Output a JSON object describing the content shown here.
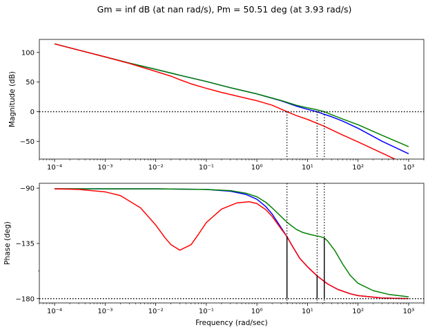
{
  "figure": {
    "title": "Gm = inf dB (at nan rad/s), Pm = 50.51 deg (at 3.93 rad/s)"
  },
  "chart_data": [
    {
      "type": "line",
      "id": "magnitude",
      "xlabel": "",
      "ylabel": "Magnitude (dB)",
      "xscale": "log",
      "xlim": [
        5e-05,
        2000
      ],
      "ylim": [
        -80,
        122
      ],
      "x_tick_values": [
        0.0001,
        0.001,
        0.01,
        0.1,
        1,
        10,
        100,
        1000
      ],
      "x_tick_labels": [
        "10⁻⁴",
        "10⁻³",
        "10⁻²",
        "10⁻¹",
        "10⁰",
        "10¹",
        "10²",
        "10³"
      ],
      "y_ticks": [
        100,
        50,
        0,
        -50
      ],
      "y_tick_labels": [
        "100",
        "50",
        "0",
        "−50"
      ],
      "reference_line": 0,
      "crossover_lines": [
        3.93,
        15.5,
        21.5
      ],
      "grid": false,
      "series": [
        {
          "color": "#0000ff",
          "x": [
            0.0001,
            0.0003,
            0.001,
            0.003,
            0.01,
            0.03,
            0.1,
            0.3,
            1,
            3,
            6,
            10,
            15.5,
            20,
            30,
            50,
            100,
            300,
            1000
          ],
          "y": [
            114.5,
            104,
            92.5,
            82,
            71.5,
            61.5,
            51,
            40.5,
            30,
            18.5,
            9.5,
            4,
            0,
            -3.5,
            -8.5,
            -16,
            -28,
            -50,
            -71
          ]
        },
        {
          "color": "#008000",
          "x": [
            0.0001,
            0.0003,
            0.001,
            0.003,
            0.01,
            0.03,
            0.1,
            0.3,
            1,
            3,
            6,
            10,
            15,
            21.5,
            30,
            50,
            100,
            300,
            1000
          ],
          "y": [
            114.5,
            104,
            92.5,
            82,
            71.5,
            61.5,
            51,
            40.5,
            30,
            19,
            11,
            6.5,
            3.5,
            0,
            -5,
            -12.5,
            -22,
            -40,
            -59
          ]
        },
        {
          "color": "#ff0000",
          "x": [
            0.0001,
            0.0003,
            0.001,
            0.003,
            0.01,
            0.02,
            0.03,
            0.05,
            0.1,
            0.2,
            0.5,
            1,
            2,
            3.93,
            6,
            10,
            20,
            50,
            100,
            300,
            600
          ],
          "y": [
            114.5,
            104,
            92.5,
            81.5,
            68,
            60,
            54,
            47,
            39.5,
            32.5,
            24.5,
            18.5,
            11,
            0,
            -6.5,
            -13,
            -23.5,
            -39.5,
            -51,
            -70,
            -82
          ]
        }
      ]
    },
    {
      "type": "line",
      "id": "phase",
      "xlabel": "Frequency (rad/sec)",
      "ylabel": "Phase (deg)",
      "xscale": "log",
      "xlim": [
        5e-05,
        2000
      ],
      "ylim": [
        -183.5,
        -86
      ],
      "x_tick_values": [
        0.0001,
        0.001,
        0.01,
        0.1,
        1,
        10,
        100,
        1000
      ],
      "x_tick_labels": [
        "10⁻⁴",
        "10⁻³",
        "10⁻²",
        "10⁻¹",
        "10⁰",
        "10¹",
        "10²",
        "10³"
      ],
      "y_ticks": [
        -90,
        -135,
        -180
      ],
      "y_tick_labels": [
        "−90",
        "−135",
        "−180"
      ],
      "y_minor_ticks": [
        -157.5
      ],
      "reference_line": -180,
      "crossover_lines": [
        3.93,
        15.5,
        21.5
      ],
      "margin_bars": [
        {
          "x": 3.93,
          "y": -129.5
        },
        {
          "x": 15.5,
          "y": -161.5
        },
        {
          "x": 21.5,
          "y": -130.5
        }
      ],
      "grid": false,
      "series": [
        {
          "color": "#0000ff",
          "x": [
            0.0001,
            0.001,
            0.01,
            0.1,
            0.3,
            0.6,
            1,
            1.5,
            2,
            3,
            3.93,
            5,
            7,
            10,
            15.5,
            25,
            40,
            70,
            100,
            300,
            1000
          ],
          "y": [
            -90.5,
            -90.5,
            -90.5,
            -91,
            -92.5,
            -95,
            -99,
            -105,
            -111,
            -122,
            -129.5,
            -137,
            -147,
            -154,
            -161.5,
            -168,
            -172.5,
            -176,
            -177.5,
            -179.5,
            -180
          ]
        },
        {
          "color": "#008000",
          "x": [
            0.0001,
            0.001,
            0.01,
            0.1,
            0.3,
            0.6,
            1,
            1.5,
            2,
            3,
            4,
            6,
            8,
            12,
            18,
            21.5,
            25,
            35,
            50,
            70,
            100,
            200,
            400,
            1000
          ],
          "y": [
            -90.5,
            -90.5,
            -90.5,
            -91,
            -92,
            -94,
            -97,
            -101.5,
            -106,
            -113,
            -118,
            -123.5,
            -126,
            -128,
            -129.5,
            -130.5,
            -133,
            -141,
            -152,
            -161,
            -167.5,
            -173.5,
            -176.5,
            -178.5
          ]
        },
        {
          "color": "#ff0000",
          "x": [
            0.0001,
            0.0003,
            0.001,
            0.002,
            0.005,
            0.01,
            0.015,
            0.02,
            0.03,
            0.05,
            0.07,
            0.1,
            0.2,
            0.4,
            0.7,
            1,
            1.5,
            2,
            3,
            3.93,
            5,
            7,
            10,
            15.5,
            25,
            40,
            70,
            100,
            300,
            1000
          ],
          "y": [
            -90.5,
            -91,
            -93,
            -96,
            -106,
            -120,
            -130,
            -136,
            -140.5,
            -136,
            -127.5,
            -118,
            -107,
            -102,
            -101,
            -102.5,
            -107.5,
            -113,
            -123,
            -129.5,
            -137,
            -147,
            -154,
            -161.5,
            -168,
            -172.5,
            -176,
            -177.5,
            -179.5,
            -180
          ]
        }
      ]
    }
  ]
}
